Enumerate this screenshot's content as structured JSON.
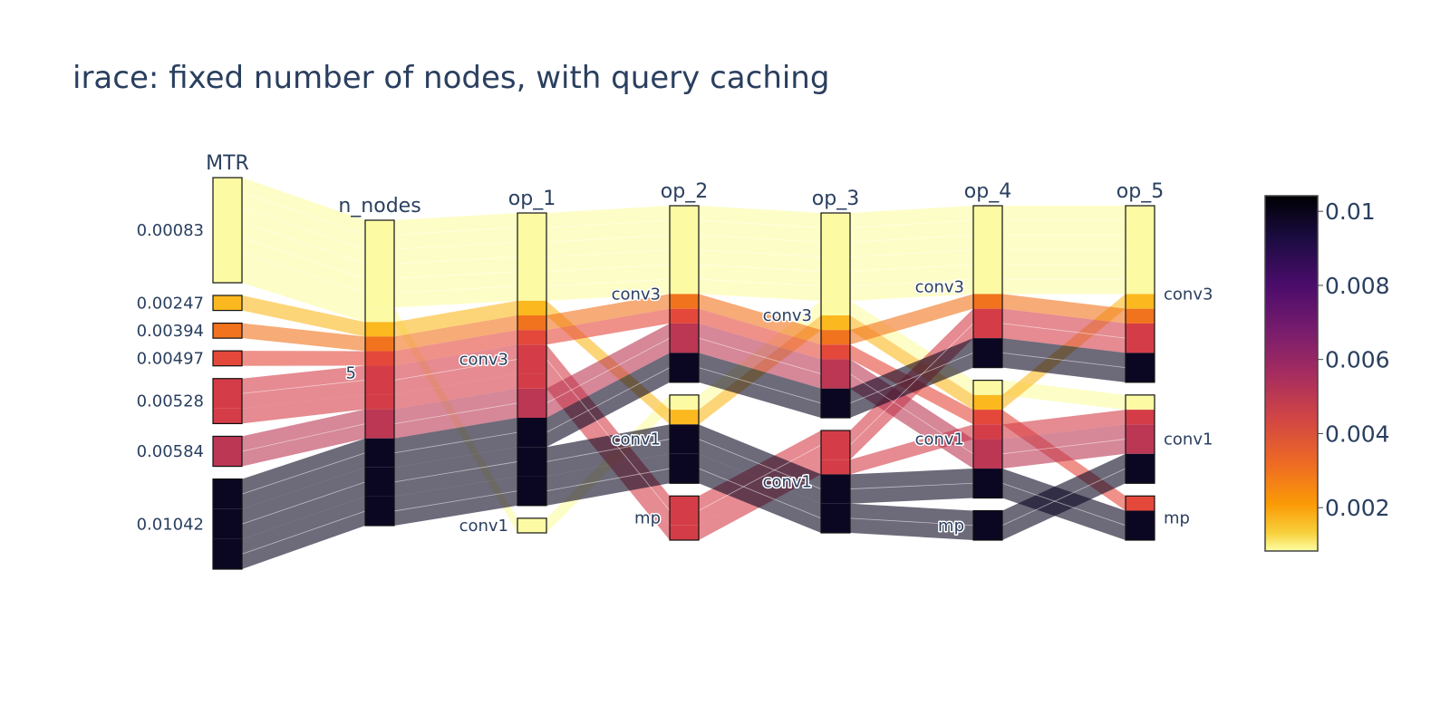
{
  "title": "irace: fixed number of nodes, with query caching",
  "chart_data": {
    "type": "parallel_categories",
    "title": "irace: fixed number of nodes, with query caching",
    "dimensions": [
      {
        "label": "MTR",
        "categories": [
          "0.00083",
          "0.00247",
          "0.00394",
          "0.00497",
          "0.00528",
          "0.00584",
          "0.01042"
        ]
      },
      {
        "label": "n_nodes",
        "categories": [
          "5"
        ]
      },
      {
        "label": "op_1",
        "categories": [
          "conv3",
          "conv1"
        ]
      },
      {
        "label": "op_2",
        "categories": [
          "conv3",
          "conv1",
          "mp"
        ]
      },
      {
        "label": "op_3",
        "categories": [
          "conv3",
          "conv1"
        ]
      },
      {
        "label": "op_4",
        "categories": [
          "conv3",
          "conv1",
          "mp"
        ]
      },
      {
        "label": "op_5",
        "categories": [
          "conv3",
          "conv1",
          "mp"
        ]
      }
    ],
    "paths": [
      {
        "mtr": 0.00083,
        "count": 6,
        "ops": [
          "conv3",
          "conv3",
          "conv3",
          "conv3",
          "conv3"
        ],
        "color": "#fcfba4"
      },
      {
        "mtr": 0.00083,
        "count": 1,
        "ops": [
          "conv1",
          "conv1",
          "conv3",
          "conv1",
          "conv1"
        ],
        "color": "#fcfba4"
      },
      {
        "mtr": 0.00247,
        "count": 1,
        "ops": [
          "conv3",
          "conv1",
          "conv3",
          "conv1",
          "conv3"
        ],
        "color": "#fbb91f"
      },
      {
        "mtr": 0.00394,
        "count": 1,
        "ops": [
          "conv3",
          "conv3",
          "conv3",
          "conv3",
          "conv3"
        ],
        "color": "#f1731d"
      },
      {
        "mtr": 0.00497,
        "count": 1,
        "ops": [
          "conv3",
          "conv3",
          "conv3",
          "conv1",
          "mp"
        ],
        "color": "#e4483a"
      },
      {
        "mtr": 0.00528,
        "count": 2,
        "ops": [
          "conv3",
          "mp",
          "conv1",
          "conv3",
          "conv3"
        ],
        "color": "#d43d47"
      },
      {
        "mtr": 0.00528,
        "count": 1,
        "ops": [
          "conv3",
          "mp",
          "conv1",
          "conv1",
          "conv1"
        ],
        "color": "#d43d47"
      },
      {
        "mtr": 0.00584,
        "count": 2,
        "ops": [
          "conv3",
          "conv3",
          "conv3",
          "conv1",
          "conv1"
        ],
        "color": "#bb3754"
      },
      {
        "mtr": 0.01042,
        "count": 2,
        "ops": [
          "conv3",
          "conv3",
          "conv3",
          "conv3",
          "conv3"
        ],
        "color": "#0b0722"
      },
      {
        "mtr": 0.01042,
        "count": 2,
        "ops": [
          "conv3",
          "conv1",
          "conv1",
          "conv1",
          "mp"
        ],
        "color": "#0b0722"
      },
      {
        "mtr": 0.01042,
        "count": 2,
        "ops": [
          "conv3",
          "conv1",
          "conv1",
          "mp",
          "conv1"
        ],
        "color": "#0b0722"
      }
    ],
    "colorscale": "inferno (reversed)",
    "colorbar": {
      "ticks": [
        "0.01",
        "0.008",
        "0.006",
        "0.004",
        "0.002"
      ]
    }
  }
}
